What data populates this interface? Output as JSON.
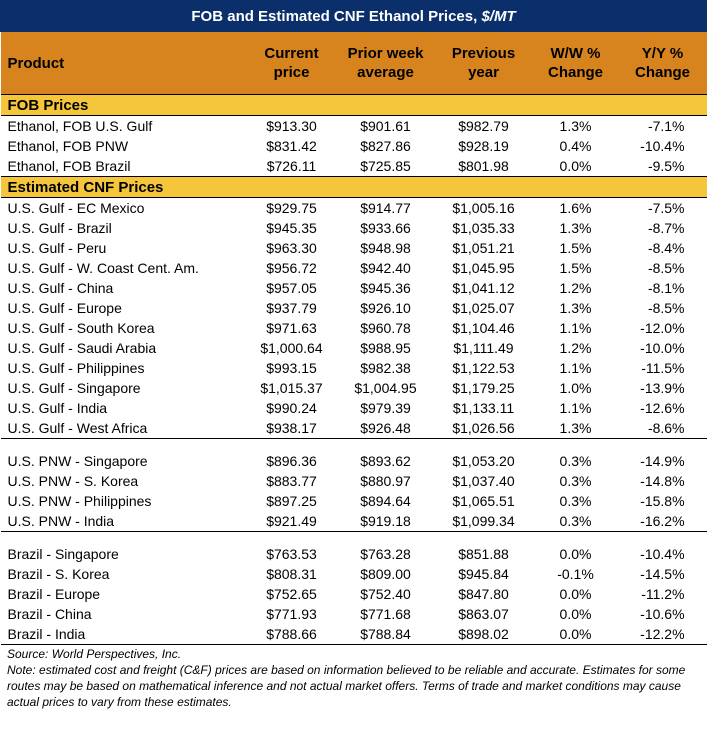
{
  "title": {
    "main": "FOB and Estimated CNF Ethanol Prices, ",
    "unit": "$/MT"
  },
  "headers": {
    "product": "Product",
    "current_line1": "Current",
    "current_line2": "price",
    "prior_line1": "Prior week",
    "prior_line2": "average",
    "previous_line1": "Previous",
    "previous_line2": "year",
    "ww_line1": "W/W %",
    "ww_line2": "Change",
    "yy_line1": "Y/Y %",
    "yy_line2": "Change"
  },
  "sections": {
    "fob": "FOB Prices",
    "cnf": "Estimated CNF Prices"
  },
  "fob_rows": [
    [
      "Ethanol, FOB U.S. Gulf",
      "$913.30",
      "$901.61",
      "$982.79",
      "1.3%",
      "-7.1%"
    ],
    [
      "Ethanol, FOB PNW",
      "$831.42",
      "$827.86",
      "$928.19",
      "0.4%",
      "-10.4%"
    ],
    [
      "Ethanol, FOB Brazil",
      "$726.11",
      "$725.85",
      "$801.98",
      "0.0%",
      "-9.5%"
    ]
  ],
  "gulf_rows": [
    [
      "U.S. Gulf - EC Mexico",
      "$929.75",
      "$914.77",
      "$1,005.16",
      "1.6%",
      "-7.5%"
    ],
    [
      "U.S. Gulf - Brazil",
      "$945.35",
      "$933.66",
      "$1,035.33",
      "1.3%",
      "-8.7%"
    ],
    [
      "U.S. Gulf - Peru",
      "$963.30",
      "$948.98",
      "$1,051.21",
      "1.5%",
      "-8.4%"
    ],
    [
      "U.S. Gulf - W. Coast Cent. Am.",
      "$956.72",
      "$942.40",
      "$1,045.95",
      "1.5%",
      "-8.5%"
    ],
    [
      "U.S. Gulf - China",
      "$957.05",
      "$945.36",
      "$1,041.12",
      "1.2%",
      "-8.1%"
    ],
    [
      "U.S. Gulf - Europe",
      "$937.79",
      "$926.10",
      "$1,025.07",
      "1.3%",
      "-8.5%"
    ],
    [
      "U.S. Gulf - South Korea",
      "$971.63",
      "$960.78",
      "$1,104.46",
      "1.1%",
      "-12.0%"
    ],
    [
      "U.S. Gulf - Saudi Arabia",
      "$1,000.64",
      "$988.95",
      "$1,111.49",
      "1.2%",
      "-10.0%"
    ],
    [
      "U.S. Gulf - Philippines",
      "$993.15",
      "$982.38",
      "$1,122.53",
      "1.1%",
      "-11.5%"
    ],
    [
      "U.S. Gulf - Singapore",
      "$1,015.37",
      "$1,004.95",
      "$1,179.25",
      "1.0%",
      "-13.9%"
    ],
    [
      "U.S. Gulf - India",
      "$990.24",
      "$979.39",
      "$1,133.11",
      "1.1%",
      "-12.6%"
    ],
    [
      "U.S. Gulf - West Africa",
      "$938.17",
      "$926.48",
      "$1,026.56",
      "1.3%",
      "-8.6%"
    ]
  ],
  "pnw_rows": [
    [
      "U.S. PNW - Singapore",
      "$896.36",
      "$893.62",
      "$1,053.20",
      "0.3%",
      "-14.9%"
    ],
    [
      "U.S. PNW - S. Korea",
      "$883.77",
      "$880.97",
      "$1,037.40",
      "0.3%",
      "-14.8%"
    ],
    [
      "U.S. PNW - Philippines",
      "$897.25",
      "$894.64",
      "$1,065.51",
      "0.3%",
      "-15.8%"
    ],
    [
      "U.S. PNW - India",
      "$921.49",
      "$919.18",
      "$1,099.34",
      "0.3%",
      "-16.2%"
    ]
  ],
  "brazil_rows": [
    [
      "Brazil - Singapore",
      "$763.53",
      "$763.28",
      "$851.88",
      "0.0%",
      "-10.4%"
    ],
    [
      "Brazil - S. Korea",
      "$808.31",
      "$809.00",
      "$945.84",
      "-0.1%",
      "-14.5%"
    ],
    [
      "Brazil - Europe",
      "$752.65",
      "$752.40",
      "$847.80",
      "0.0%",
      "-11.2%"
    ],
    [
      "Brazil - China",
      "$771.93",
      "$771.68",
      "$863.07",
      "0.0%",
      "-10.6%"
    ],
    [
      "Brazil - India",
      "$788.66",
      "$788.84",
      "$898.02",
      "0.0%",
      "-12.2%"
    ]
  ],
  "footer": {
    "source": "Source: World Perspectives, Inc.",
    "note": "Note: estimated cost and freight (C&F) prices are based on information believed to be reliable and accurate. Estimates for some routes may be based on mathematical inference and not actual market offers. Terms of trade and market conditions may cause actual prices to vary from these estimates."
  },
  "colors": {
    "title_bg": "#0a2f6b",
    "header_bg": "#d7841e",
    "section_bg": "#f5c63b"
  }
}
